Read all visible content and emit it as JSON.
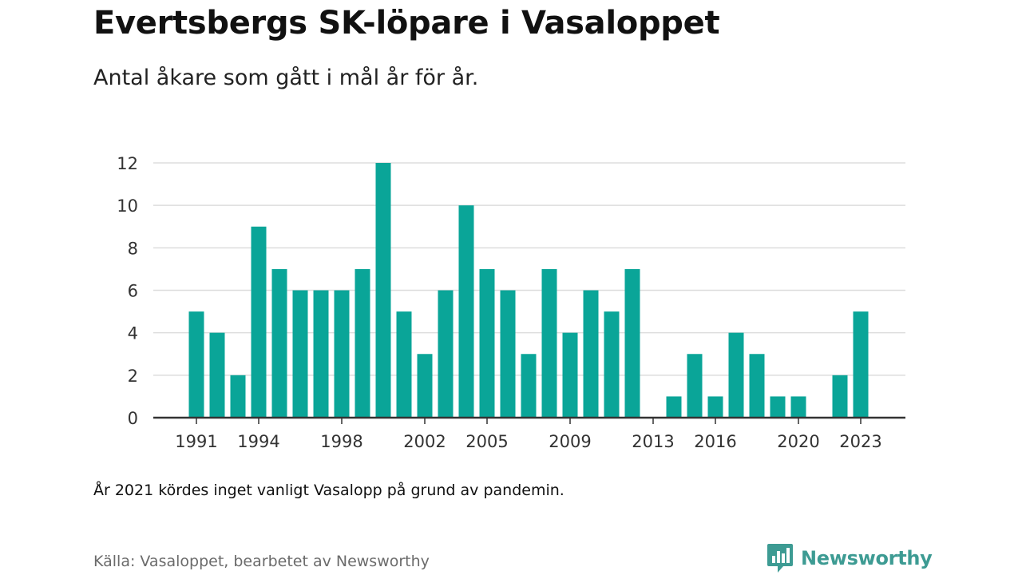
{
  "header": {
    "title": "Evertsbergs SK-löpare i Vasaloppet",
    "subtitle": "Antal åkare som gått i mål år för år."
  },
  "footer": {
    "note": "År 2021 kördes inget vanligt Vasalopp på grund av pandemin.",
    "source": "Källa: Vasaloppet, bearbetet av Newsworthy",
    "logo_text": "Newsworthy",
    "logo_icon": "newsworthy-logo-icon"
  },
  "colors": {
    "bar": "#0aa598",
    "grid": "#dddddd",
    "axis": "#333333",
    "logo": "#3d9b93"
  },
  "chart_data": {
    "type": "bar",
    "title": "Evertsbergs SK-löpare i Vasaloppet",
    "subtitle": "Antal åkare som gått i mål år för år.",
    "xlabel": "",
    "ylabel": "",
    "ylim": [
      0,
      12
    ],
    "yticks": [
      0,
      2,
      4,
      6,
      8,
      10,
      12
    ],
    "xtick_labels": [
      "1991",
      "1994",
      "1998",
      "2002",
      "2005",
      "2009",
      "2013",
      "2016",
      "2020",
      "2023"
    ],
    "grid": true,
    "legend": "none",
    "categories": [
      1991,
      1992,
      1993,
      1994,
      1995,
      1996,
      1997,
      1998,
      1999,
      2000,
      2001,
      2002,
      2003,
      2004,
      2005,
      2006,
      2007,
      2008,
      2009,
      2010,
      2011,
      2012,
      2013,
      2014,
      2015,
      2016,
      2017,
      2018,
      2019,
      2020,
      2021,
      2022,
      2023
    ],
    "values": [
      5,
      4,
      2,
      9,
      7,
      6,
      6,
      6,
      7,
      12,
      5,
      3,
      6,
      10,
      7,
      6,
      3,
      7,
      4,
      6,
      5,
      7,
      0,
      1,
      3,
      1,
      4,
      3,
      1,
      1,
      null,
      2,
      5
    ]
  }
}
